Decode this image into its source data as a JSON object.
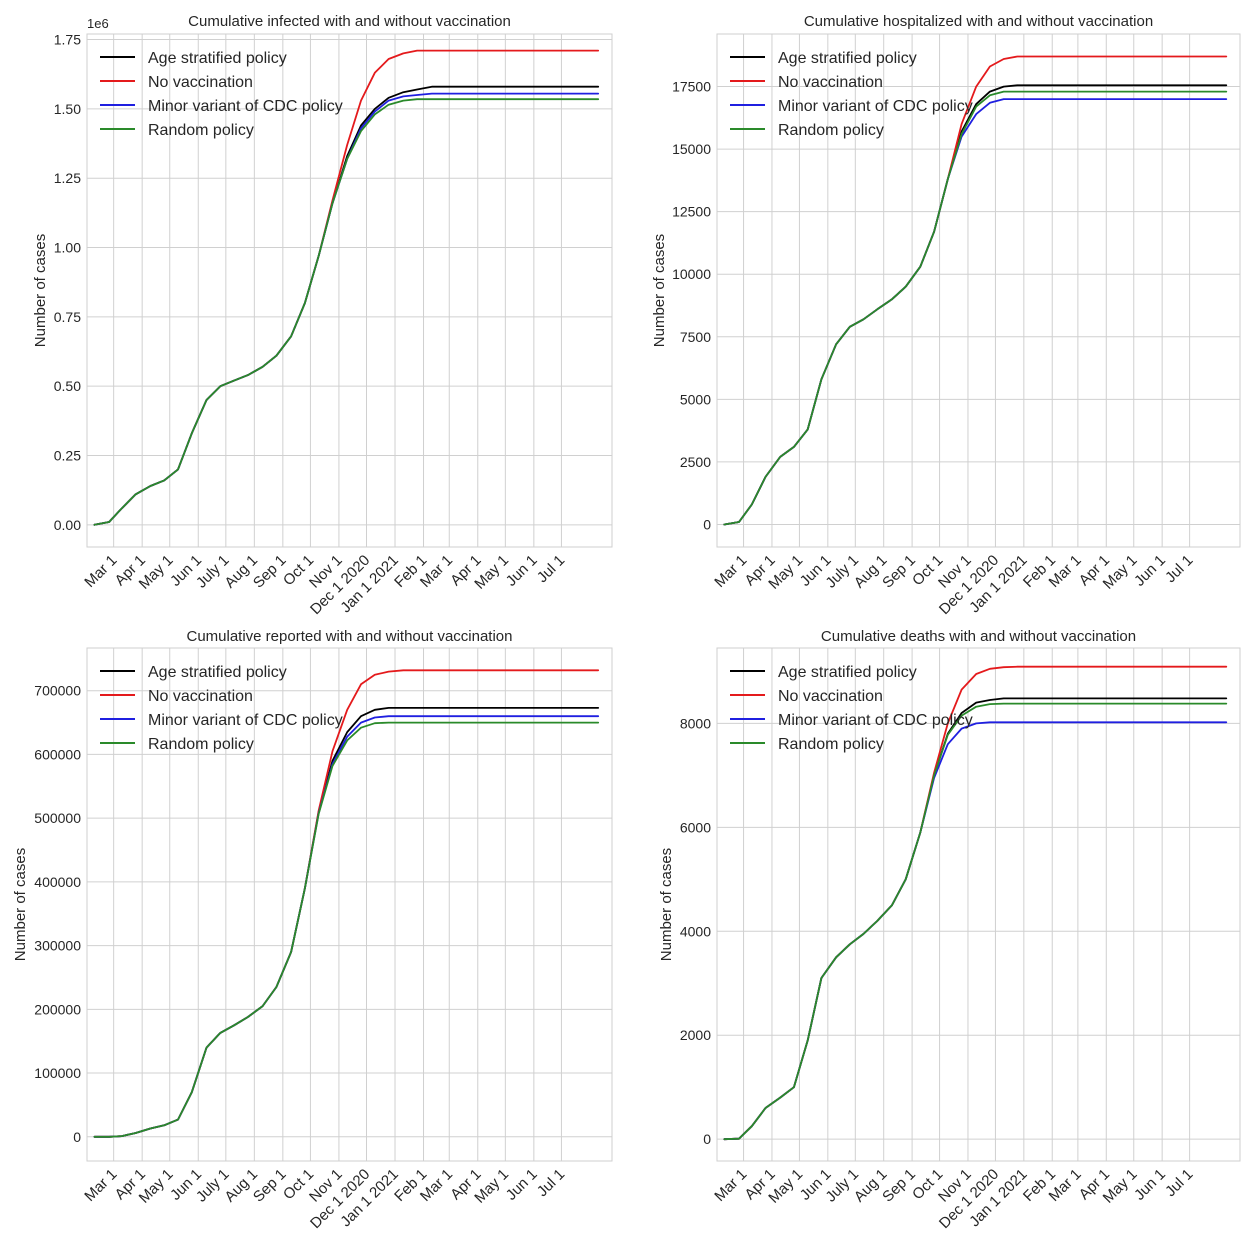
{
  "chart_data": [
    {
      "type": "line",
      "title": "Cumulative infected with and without vaccination",
      "xlabel": "",
      "ylabel": "Number of cases",
      "offset_label": "1e6",
      "ylim": [
        -0.08,
        1.77
      ],
      "ytick_values": [
        0,
        0.25,
        0.5,
        0.75,
        1.0,
        1.25,
        1.5,
        1.75
      ],
      "ytick_labels": [
        "0.00",
        "0.25",
        "0.50",
        "0.75",
        "1.00",
        "1.25",
        "1.50",
        "1.75"
      ],
      "x_dates": [
        "2020-02-09",
        "2020-02-25",
        "2020-03-10",
        "2020-03-25",
        "2020-04-10",
        "2020-04-25",
        "2020-05-10",
        "2020-05-25",
        "2020-06-10",
        "2020-06-25",
        "2020-07-10",
        "2020-07-25",
        "2020-08-10",
        "2020-08-25",
        "2020-09-10",
        "2020-09-25",
        "2020-10-10",
        "2020-10-25",
        "2020-11-10",
        "2020-11-25",
        "2020-12-10",
        "2020-12-25",
        "2021-01-10",
        "2021-01-25",
        "2021-02-10",
        "2021-02-25",
        "2021-03-10",
        "2021-03-25",
        "2021-04-10",
        "2021-04-25",
        "2021-05-10",
        "2021-05-25",
        "2021-06-10",
        "2021-06-25",
        "2021-07-10",
        "2021-07-25",
        "2021-08-10"
      ],
      "series": [
        {
          "name": "Age stratified policy",
          "color": "#000000",
          "values": [
            0.0,
            0.01,
            0.06,
            0.11,
            0.14,
            0.16,
            0.2,
            0.33,
            0.45,
            0.5,
            0.52,
            0.54,
            0.57,
            0.61,
            0.68,
            0.8,
            0.97,
            1.16,
            1.33,
            1.44,
            1.5,
            1.54,
            1.56,
            1.57,
            1.58,
            1.58,
            1.58,
            1.58,
            1.58,
            1.58,
            1.58,
            1.58,
            1.58,
            1.58,
            1.58,
            1.58,
            1.58
          ]
        },
        {
          "name": "No vaccination",
          "color": "#e41a1c",
          "values": [
            0.0,
            0.01,
            0.06,
            0.11,
            0.14,
            0.16,
            0.2,
            0.33,
            0.45,
            0.5,
            0.52,
            0.54,
            0.57,
            0.61,
            0.68,
            0.8,
            0.97,
            1.17,
            1.37,
            1.53,
            1.63,
            1.68,
            1.7,
            1.71,
            1.71,
            1.71,
            1.71,
            1.71,
            1.71,
            1.71,
            1.71,
            1.71,
            1.71,
            1.71,
            1.71,
            1.71,
            1.71
          ]
        },
        {
          "name": "Minor variant of CDC policy",
          "color": "#1f1fe0",
          "values": [
            0.0,
            0.01,
            0.06,
            0.11,
            0.14,
            0.16,
            0.2,
            0.33,
            0.45,
            0.5,
            0.52,
            0.54,
            0.57,
            0.61,
            0.68,
            0.8,
            0.97,
            1.16,
            1.32,
            1.43,
            1.49,
            1.53,
            1.545,
            1.55,
            1.555,
            1.555,
            1.555,
            1.555,
            1.555,
            1.555,
            1.555,
            1.555,
            1.555,
            1.555,
            1.555,
            1.555,
            1.555
          ]
        },
        {
          "name": "Random policy",
          "color": "#2a8a2a",
          "values": [
            0.0,
            0.01,
            0.06,
            0.11,
            0.14,
            0.16,
            0.2,
            0.33,
            0.45,
            0.5,
            0.52,
            0.54,
            0.57,
            0.61,
            0.68,
            0.8,
            0.97,
            1.16,
            1.32,
            1.42,
            1.48,
            1.515,
            1.53,
            1.535,
            1.535,
            1.535,
            1.535,
            1.535,
            1.535,
            1.535,
            1.535,
            1.535,
            1.535,
            1.535,
            1.535,
            1.535,
            1.535
          ]
        }
      ]
    },
    {
      "type": "line",
      "title": "Cumulative hospitalized with and without vaccination",
      "xlabel": "",
      "ylabel": "Number of cases",
      "ylim": [
        -900,
        19600
      ],
      "ytick_values": [
        0,
        2500,
        5000,
        7500,
        10000,
        12500,
        15000,
        17500
      ],
      "ytick_labels": [
        "0",
        "2500",
        "5000",
        "7500",
        "10000",
        "12500",
        "15000",
        "17500"
      ],
      "x_dates": [
        "2020-02-09",
        "2020-02-25",
        "2020-03-10",
        "2020-03-25",
        "2020-04-10",
        "2020-04-25",
        "2020-05-10",
        "2020-05-25",
        "2020-06-10",
        "2020-06-25",
        "2020-07-10",
        "2020-07-25",
        "2020-08-10",
        "2020-08-25",
        "2020-09-10",
        "2020-09-25",
        "2020-10-10",
        "2020-10-25",
        "2020-11-10",
        "2020-11-25",
        "2020-12-10",
        "2020-12-25",
        "2021-01-10",
        "2021-01-25",
        "2021-02-10",
        "2021-02-25",
        "2021-03-10",
        "2021-03-25",
        "2021-04-10",
        "2021-04-25",
        "2021-05-10",
        "2021-05-25",
        "2021-06-10",
        "2021-06-25",
        "2021-07-10",
        "2021-07-25",
        "2021-08-10"
      ],
      "series": [
        {
          "name": "Age stratified policy",
          "color": "#000000",
          "values": [
            0,
            100,
            800,
            1900,
            2700,
            3100,
            3800,
            5800,
            7200,
            7900,
            8200,
            8600,
            9000,
            9500,
            10300,
            11700,
            13800,
            15700,
            16800,
            17300,
            17500,
            17550,
            17550,
            17550,
            17550,
            17550,
            17550,
            17550,
            17550,
            17550,
            17550,
            17550,
            17550,
            17550,
            17550,
            17550,
            17550
          ]
        },
        {
          "name": "No vaccination",
          "color": "#e41a1c",
          "values": [
            0,
            100,
            800,
            1900,
            2700,
            3100,
            3800,
            5800,
            7200,
            7900,
            8200,
            8600,
            9000,
            9500,
            10300,
            11700,
            13800,
            16000,
            17500,
            18300,
            18600,
            18700,
            18700,
            18700,
            18700,
            18700,
            18700,
            18700,
            18700,
            18700,
            18700,
            18700,
            18700,
            18700,
            18700,
            18700,
            18700
          ]
        },
        {
          "name": "Minor variant of CDC policy",
          "color": "#1f1fe0",
          "values": [
            0,
            100,
            800,
            1900,
            2700,
            3100,
            3800,
            5800,
            7200,
            7900,
            8200,
            8600,
            9000,
            9500,
            10300,
            11700,
            13800,
            15500,
            16400,
            16850,
            17000,
            17000,
            17000,
            17000,
            17000,
            17000,
            17000,
            17000,
            17000,
            17000,
            17000,
            17000,
            17000,
            17000,
            17000,
            17000,
            17000
          ]
        },
        {
          "name": "Random policy",
          "color": "#2a8a2a",
          "values": [
            0,
            100,
            800,
            1900,
            2700,
            3100,
            3800,
            5800,
            7200,
            7900,
            8200,
            8600,
            9000,
            9500,
            10300,
            11700,
            13800,
            15600,
            16700,
            17150,
            17300,
            17300,
            17300,
            17300,
            17300,
            17300,
            17300,
            17300,
            17300,
            17300,
            17300,
            17300,
            17300,
            17300,
            17300,
            17300,
            17300
          ]
        }
      ]
    },
    {
      "type": "line",
      "title": "Cumulative reported with and without vaccination",
      "xlabel": "",
      "ylabel": "Number of cases",
      "ylim": [
        -38000,
        767000
      ],
      "ytick_values": [
        0,
        100000,
        200000,
        300000,
        400000,
        500000,
        600000,
        700000
      ],
      "ytick_labels": [
        "0",
        "100000",
        "200000",
        "300000",
        "400000",
        "500000",
        "600000",
        "700000"
      ],
      "x_dates": [
        "2020-02-09",
        "2020-02-25",
        "2020-03-10",
        "2020-03-25",
        "2020-04-10",
        "2020-04-25",
        "2020-05-10",
        "2020-05-25",
        "2020-06-10",
        "2020-06-25",
        "2020-07-10",
        "2020-07-25",
        "2020-08-10",
        "2020-08-25",
        "2020-09-10",
        "2020-09-25",
        "2020-10-10",
        "2020-10-25",
        "2020-11-10",
        "2020-11-25",
        "2020-12-10",
        "2020-12-25",
        "2021-01-10",
        "2021-01-25",
        "2021-02-10",
        "2021-02-25",
        "2021-03-10",
        "2021-03-25",
        "2021-04-10",
        "2021-04-25",
        "2021-05-10",
        "2021-05-25",
        "2021-06-10",
        "2021-06-25",
        "2021-07-10",
        "2021-07-25",
        "2021-08-10"
      ],
      "series": [
        {
          "name": "Age stratified policy",
          "color": "#000000",
          "values": [
            0,
            0,
            1000,
            6000,
            13000,
            18000,
            27000,
            70000,
            140000,
            163000,
            175000,
            188000,
            205000,
            235000,
            290000,
            390000,
            510000,
            590000,
            635000,
            660000,
            670000,
            673000,
            673000,
            673000,
            673000,
            673000,
            673000,
            673000,
            673000,
            673000,
            673000,
            673000,
            673000,
            673000,
            673000,
            673000,
            673000
          ]
        },
        {
          "name": "No vaccination",
          "color": "#e41a1c",
          "values": [
            0,
            0,
            1000,
            6000,
            13000,
            18000,
            27000,
            70000,
            140000,
            163000,
            175000,
            188000,
            205000,
            235000,
            290000,
            390000,
            512000,
            605000,
            670000,
            710000,
            725000,
            730000,
            732000,
            732000,
            732000,
            732000,
            732000,
            732000,
            732000,
            732000,
            732000,
            732000,
            732000,
            732000,
            732000,
            732000,
            732000
          ]
        },
        {
          "name": "Minor variant of CDC policy",
          "color": "#1f1fe0",
          "values": [
            0,
            0,
            1000,
            6000,
            13000,
            18000,
            27000,
            70000,
            140000,
            163000,
            175000,
            188000,
            205000,
            235000,
            290000,
            390000,
            508000,
            585000,
            628000,
            650000,
            658000,
            660000,
            660000,
            660000,
            660000,
            660000,
            660000,
            660000,
            660000,
            660000,
            660000,
            660000,
            660000,
            660000,
            660000,
            660000,
            660000
          ]
        },
        {
          "name": "Random policy",
          "color": "#2a8a2a",
          "values": [
            0,
            0,
            1000,
            6000,
            13000,
            18000,
            27000,
            70000,
            140000,
            163000,
            175000,
            188000,
            205000,
            235000,
            290000,
            390000,
            507000,
            582000,
            622000,
            642000,
            649000,
            650000,
            650000,
            650000,
            650000,
            650000,
            650000,
            650000,
            650000,
            650000,
            650000,
            650000,
            650000,
            650000,
            650000,
            650000,
            650000
          ]
        }
      ]
    },
    {
      "type": "line",
      "title": "Cumulative deaths with and without vaccination",
      "xlabel": "",
      "ylabel": "Number of cases",
      "ylim": [
        -420,
        9450
      ],
      "ytick_values": [
        0,
        2000,
        4000,
        6000,
        8000
      ],
      "ytick_labels": [
        "0",
        "2000",
        "4000",
        "6000",
        "8000"
      ],
      "x_dates": [
        "2020-02-09",
        "2020-02-25",
        "2020-03-10",
        "2020-03-25",
        "2020-04-10",
        "2020-04-25",
        "2020-05-10",
        "2020-05-25",
        "2020-06-10",
        "2020-06-25",
        "2020-07-10",
        "2020-07-25",
        "2020-08-10",
        "2020-08-25",
        "2020-09-10",
        "2020-09-25",
        "2020-10-10",
        "2020-10-25",
        "2020-11-10",
        "2020-11-25",
        "2020-12-10",
        "2020-12-25",
        "2021-01-10",
        "2021-01-25",
        "2021-02-10",
        "2021-02-25",
        "2021-03-10",
        "2021-03-25",
        "2021-04-10",
        "2021-04-25",
        "2021-05-10",
        "2021-05-25",
        "2021-06-10",
        "2021-06-25",
        "2021-07-10",
        "2021-07-25",
        "2021-08-10"
      ],
      "series": [
        {
          "name": "Age stratified policy",
          "color": "#000000",
          "values": [
            0,
            10,
            250,
            600,
            800,
            1000,
            1900,
            3100,
            3500,
            3750,
            3950,
            4200,
            4500,
            5000,
            5900,
            7000,
            7800,
            8200,
            8400,
            8450,
            8480,
            8480,
            8480,
            8480,
            8480,
            8480,
            8480,
            8480,
            8480,
            8480,
            8480,
            8480,
            8480,
            8480,
            8480,
            8480,
            8480
          ]
        },
        {
          "name": "No vaccination",
          "color": "#e41a1c",
          "values": [
            0,
            10,
            250,
            600,
            800,
            1000,
            1900,
            3100,
            3500,
            3750,
            3950,
            4200,
            4500,
            5000,
            5900,
            7050,
            8000,
            8650,
            8950,
            9050,
            9080,
            9090,
            9090,
            9090,
            9090,
            9090,
            9090,
            9090,
            9090,
            9090,
            9090,
            9090,
            9090,
            9090,
            9090,
            9090,
            9090
          ]
        },
        {
          "name": "Minor variant of CDC policy",
          "color": "#1f1fe0",
          "values": [
            0,
            10,
            250,
            600,
            800,
            1000,
            1900,
            3100,
            3500,
            3750,
            3950,
            4200,
            4500,
            5000,
            5900,
            6950,
            7600,
            7900,
            8000,
            8020,
            8020,
            8020,
            8020,
            8020,
            8020,
            8020,
            8020,
            8020,
            8020,
            8020,
            8020,
            8020,
            8020,
            8020,
            8020,
            8020,
            8020
          ]
        },
        {
          "name": "Random policy",
          "color": "#2a8a2a",
          "values": [
            0,
            10,
            250,
            600,
            800,
            1000,
            1900,
            3100,
            3500,
            3750,
            3950,
            4200,
            4500,
            5000,
            5900,
            7000,
            7780,
            8150,
            8320,
            8370,
            8380,
            8380,
            8380,
            8380,
            8380,
            8380,
            8380,
            8380,
            8380,
            8380,
            8380,
            8380,
            8380,
            8380,
            8380,
            8380,
            8380
          ]
        }
      ]
    }
  ],
  "x_axis": {
    "start_date": "2020-02-01",
    "end_date": "2021-08-25",
    "tick_dates": [
      "2020-03-01",
      "2020-04-01",
      "2020-05-01",
      "2020-06-01",
      "2020-07-01",
      "2020-08-01",
      "2020-09-01",
      "2020-10-01",
      "2020-11-01",
      "2020-12-01",
      "2021-01-01",
      "2021-02-01",
      "2021-03-01",
      "2021-04-01",
      "2021-05-01",
      "2021-06-01",
      "2021-07-01"
    ],
    "tick_labels": [
      "Mar 1",
      "Apr 1",
      "May 1",
      "Jun 1",
      "July 1",
      "Aug 1",
      "Sep 1",
      "Oct 1",
      "Nov 1",
      "Dec 1 2020",
      "Jan 1 2021",
      "Feb 1",
      "Mar 1",
      "Apr 1",
      "May 1",
      "Jun 1",
      "Jul 1"
    ]
  },
  "grid": true,
  "legend_position": "top-left"
}
